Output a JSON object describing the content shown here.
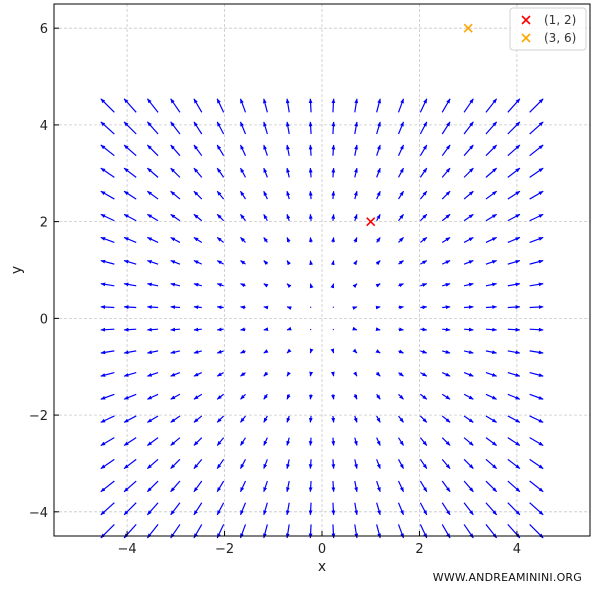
{
  "chart_data": {
    "type": "quiver",
    "title": "",
    "xlabel": "x",
    "ylabel": "y",
    "xlim": [
      -5.5,
      5.5
    ],
    "ylim": [
      -4.5,
      6.5
    ],
    "xticks": [
      -4,
      -2,
      0,
      2,
      4
    ],
    "yticks": [
      -4,
      -2,
      0,
      2,
      4,
      6
    ],
    "xtick_labels": [
      "−4",
      "−2",
      "0",
      "2",
      "4"
    ],
    "ytick_labels": [
      "−4",
      "−2",
      "0",
      "2",
      "4",
      "6"
    ],
    "grid": true,
    "field": {
      "u": "x",
      "v": "y",
      "x_range": [
        -4.4,
        4.4
      ],
      "y_range": [
        -4.4,
        4.4
      ],
      "count": 20,
      "color": "#0000ff"
    },
    "points": [
      {
        "label": "(1, 2)",
        "x": 1,
        "y": 2,
        "color": "#ff0000",
        "marker": "x"
      },
      {
        "label": "(3, 6)",
        "x": 3,
        "y": 6,
        "color": "#ffa500",
        "marker": "x"
      }
    ],
    "legend": {
      "position": "top-right"
    }
  },
  "watermark": "WWW.ANDREAMININI.ORG"
}
